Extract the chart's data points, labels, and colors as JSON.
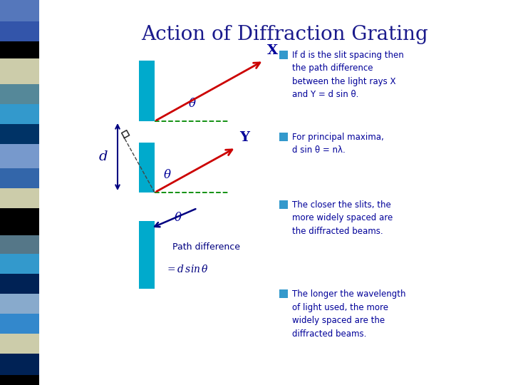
{
  "title": "Action of Diffraction Grating",
  "title_color": "#1a1a8c",
  "title_fontsize": 20,
  "background_color": "#ffffff",
  "grating_color": "#00aacc",
  "arrow_color": "#cc0000",
  "dashed_color": "#008800",
  "dim_color": "#000080",
  "bullet_color": "#3399cc",
  "text_color": "#000099",
  "left_bar_colors": [
    [
      "#888888",
      0,
      0,
      8,
      540
    ],
    [
      "#4477bb",
      0,
      0,
      55,
      30
    ],
    [
      "#3355aa",
      0,
      28,
      55,
      28
    ],
    [
      "#000000",
      0,
      54,
      55,
      20
    ],
    [
      "#ccccaa",
      0,
      72,
      55,
      36
    ],
    [
      "#558899",
      0,
      106,
      55,
      30
    ],
    [
      "#3399cc",
      0,
      134,
      55,
      26
    ],
    [
      "#002266",
      0,
      158,
      55,
      30
    ],
    [
      "#6699cc",
      0,
      186,
      55,
      36
    ],
    [
      "#3366bb",
      0,
      220,
      55,
      30
    ],
    [
      "#ccccaa",
      0,
      248,
      55,
      30
    ],
    [
      "#000000",
      0,
      276,
      55,
      36
    ],
    [
      "#668899",
      0,
      310,
      55,
      30
    ],
    [
      "#3399cc",
      0,
      338,
      55,
      30
    ],
    [
      "#003377",
      0,
      366,
      55,
      36
    ],
    [
      "#88bbdd",
      0,
      400,
      55,
      28
    ],
    [
      "#3399cc",
      0,
      426,
      55,
      28
    ],
    [
      "#ccccaa",
      0,
      452,
      55,
      28
    ],
    [
      "#002266",
      0,
      478,
      55,
      30
    ],
    [
      "#000000",
      0,
      506,
      55,
      34
    ]
  ],
  "bullet_texts": [
    "If d is the slit spacing then\nthe path difference\nbetween the light rays X\nand Y = d sin θ.",
    "For principal maxima,\nd sin θ = nλ.",
    "The closer the slits, the\nmore widely spaced are\nthe diffracted beams.",
    "The longer the wavelength\nof light used, the more\nwidely spaced are the\ndiffracted beams."
  ]
}
